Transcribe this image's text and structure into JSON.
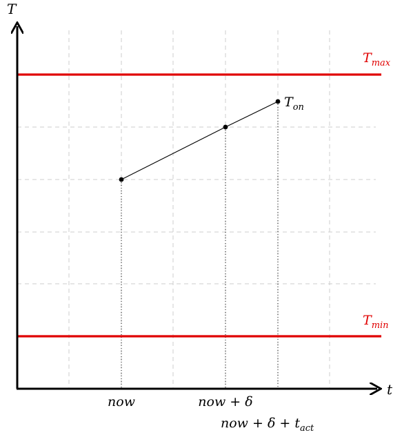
{
  "axes": {
    "y_label": "T",
    "x_label": "t"
  },
  "thresholds": {
    "t_max": {
      "base": "T",
      "sub": "max",
      "color": "#e00000"
    },
    "t_min": {
      "base": "T",
      "sub": "min",
      "color": "#e00000"
    }
  },
  "points": {
    "t_on": {
      "base": "T",
      "sub": "on"
    }
  },
  "x_ticks": {
    "now": {
      "text": "now"
    },
    "now_delta": {
      "text": "now + δ"
    },
    "now_delta_tact": {
      "text": "now + δ + t",
      "sub": "act"
    }
  },
  "colors": {
    "threshold": "#e00000",
    "axis": "#000000",
    "grid": "#cccccc"
  }
}
